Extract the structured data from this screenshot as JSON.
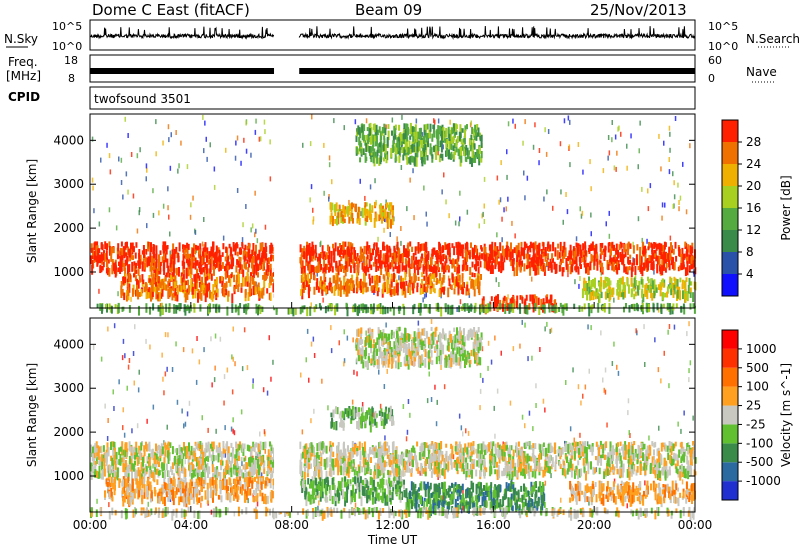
{
  "header": {
    "title": "Dome C East (fitACF)",
    "beam": "Beam 09",
    "date": "25/Nov/2013"
  },
  "top_strips": {
    "nsky_label": "N.Sky",
    "nsky_ticks": [
      "10^5",
      "10^0"
    ],
    "nsearch_label": "N.Search",
    "nsearch_ticks": [
      "10^5",
      "10^0"
    ],
    "freq_label": "Freq.",
    "freq_unit": "[MHz]",
    "freq_ticks": [
      "18",
      "8"
    ],
    "nave_label": "Nave",
    "nave_ticks": [
      "60",
      "0"
    ],
    "cpid_label": "CPID",
    "cpid_value": "twofsound 3501"
  },
  "chart_data": [
    {
      "type": "heatmap",
      "panel": "power",
      "ylabel": "Slant Range [km]",
      "xlabel": "",
      "x_ticks": [
        "00:00",
        "04:00",
        "08:00",
        "12:00",
        "16:00",
        "20:00",
        "00:00"
      ],
      "xlim_hours": [
        0,
        24
      ],
      "ylim": [
        180,
        4600
      ],
      "y_ticks": [
        1000,
        2000,
        3000,
        4000
      ],
      "data_gap_hours": [
        7.3,
        8.3
      ],
      "colorbar": {
        "label": "Power [dB]",
        "ticks": [
          "4",
          "8",
          "12",
          "16",
          "20",
          "24",
          "28"
        ],
        "colors": [
          "#1010ff",
          "#2a52a8",
          "#3a8a4a",
          "#55aa40",
          "#a8d020",
          "#f0b000",
          "#f07000",
          "#ff2000"
        ]
      },
      "regions": [
        {
          "x": [
            0,
            7.3
          ],
          "y": [
            1050,
            1700
          ],
          "level": 7
        },
        {
          "x": [
            8.3,
            24
          ],
          "y": [
            1100,
            1700
          ],
          "level": 7
        },
        {
          "x": [
            1.2,
            7.3
          ],
          "y": [
            500,
            1000
          ],
          "level": 6
        },
        {
          "x": [
            8.3,
            15.5
          ],
          "y": [
            600,
            1000
          ],
          "level": 6
        },
        {
          "x": [
            15.5,
            18.5
          ],
          "y": [
            250,
            500
          ],
          "level": 7
        },
        {
          "x": [
            9.5,
            12.0
          ],
          "y": [
            2200,
            2600
          ],
          "level": 5
        },
        {
          "x": [
            19.5,
            24
          ],
          "y": [
            500,
            900
          ],
          "level": 4
        },
        {
          "x": [
            10.5,
            15.5
          ],
          "y": [
            3600,
            4400
          ],
          "level": 3
        },
        {
          "x": [
            0,
            24
          ],
          "y": [
            200,
            300
          ],
          "level": 3
        }
      ]
    },
    {
      "type": "heatmap",
      "panel": "velocity",
      "ylabel": "Slant Range [km]",
      "xlabel": "Time UT",
      "x_ticks": [
        "00:00",
        "04:00",
        "08:00",
        "12:00",
        "16:00",
        "20:00",
        "00:00"
      ],
      "xlim_hours": [
        0,
        24
      ],
      "ylim": [
        180,
        4600
      ],
      "y_ticks": [
        1000,
        2000,
        3000,
        4000
      ],
      "data_gap_hours": [
        7.3,
        8.3
      ],
      "colorbar": {
        "label": "Velocity [m s^-1]",
        "ticks": [
          "1000",
          "500",
          "100",
          "25",
          "-25",
          "-100",
          "-500",
          "-1000"
        ],
        "colors": [
          "#2030d0",
          "#2a6aa0",
          "#3a8a4a",
          "#60c030",
          "#c8c8c0",
          "#ffa020",
          "#ff7000",
          "#ff3000",
          "#ff0000"
        ]
      },
      "regions": [
        {
          "x": [
            0,
            7.3
          ],
          "y": [
            1050,
            1800
          ],
          "level": 4
        },
        {
          "x": [
            8.3,
            24
          ],
          "y": [
            1100,
            1800
          ],
          "level": 4
        },
        {
          "x": [
            0.5,
            7.3
          ],
          "y": [
            500,
            1000
          ],
          "level": 5
        },
        {
          "x": [
            8.3,
            12.5
          ],
          "y": [
            500,
            1000
          ],
          "level": 3
        },
        {
          "x": [
            12.5,
            18.0
          ],
          "y": [
            300,
            900
          ],
          "level": 2
        },
        {
          "x": [
            19.0,
            24
          ],
          "y": [
            500,
            900
          ],
          "level": 5
        },
        {
          "x": [
            9.5,
            12.0
          ],
          "y": [
            2200,
            2600
          ],
          "level": 3
        },
        {
          "x": [
            10.5,
            15.5
          ],
          "y": [
            3600,
            4400
          ],
          "level": 4
        },
        {
          "x": [
            0,
            24
          ],
          "y": [
            200,
            300
          ],
          "level": 4
        }
      ]
    }
  ]
}
